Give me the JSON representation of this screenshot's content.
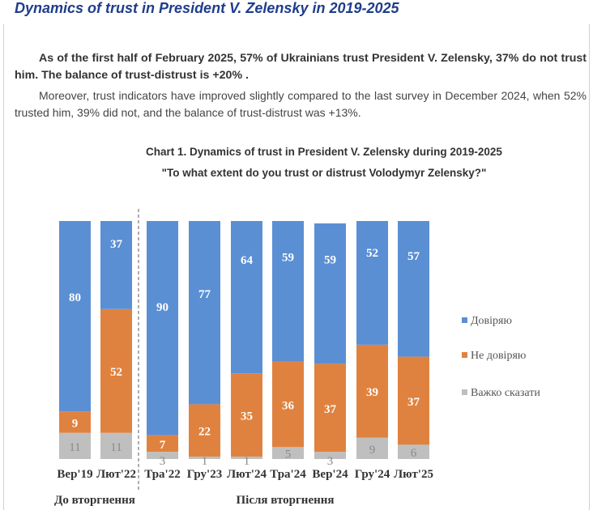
{
  "heading": "Dynamics of trust in President V. Zelensky in 2019-2025",
  "paragraph1": "As of the first half of February 2025, 57% of Ukrainians trust President V. Zelensky, 37% do not trust him. The balance of trust-distrust is +20% .",
  "paragraph2": "Moreover, trust indicators have improved slightly compared to the last survey in December 2024, when 52% trusted him, 39% did not, and the balance of trust-distrust was +13%.",
  "chart_data": {
    "type": "bar",
    "stacked": true,
    "title": "Chart 1. Dynamics of trust in President V. Zelensky during 2019-2025",
    "subtitle": "\"To what extent do you trust or distrust Volodymyr Zelensky?\"",
    "categories": [
      "Вер'19",
      "Лют'22",
      "Тра'22",
      "Гру'23",
      "Лют'24",
      "Тра'24",
      "Вер'24",
      "Гру'24",
      "Лют'25"
    ],
    "series": [
      {
        "name": "Довіряю",
        "color": "#5b8fd4",
        "values": [
          80,
          37,
          90,
          77,
          64,
          59,
          59,
          52,
          57
        ]
      },
      {
        "name": "Не довіряю",
        "color": "#e0823f",
        "values": [
          9,
          52,
          7,
          22,
          35,
          36,
          37,
          39,
          37
        ]
      },
      {
        "name": "Важко сказати",
        "color": "#bfbfbf",
        "values": [
          11,
          11,
          3,
          1,
          1,
          5,
          3,
          9,
          6
        ]
      }
    ],
    "groups": [
      {
        "label": "До вторгнення",
        "categories": 2
      },
      {
        "label": "Після вторгнення",
        "categories": 7
      }
    ],
    "legend": "right",
    "grid": false
  }
}
